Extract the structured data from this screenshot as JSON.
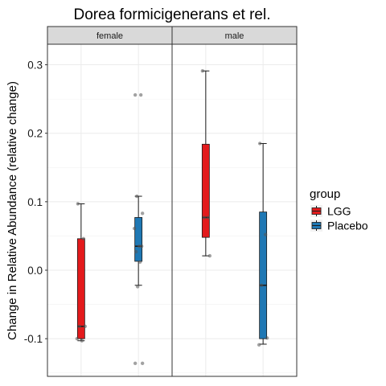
{
  "chart_data": {
    "type": "boxplot",
    "title": "Dorea formicigenerans et rel.",
    "ylabel": "Change in Relative Abundance (relative change)",
    "xlabel": "",
    "ylim": [
      -0.155,
      0.33
    ],
    "yticks": [
      -0.1,
      0.0,
      0.1,
      0.2,
      0.3
    ],
    "ytick_labels": [
      "-0.1",
      "0.0",
      "0.1",
      "0.2",
      "0.3"
    ],
    "grid": true,
    "legend": {
      "title": "group",
      "position": "right",
      "entries": [
        {
          "label": "LGG",
          "color": "#e31a1c"
        },
        {
          "label": "Placebo",
          "color": "#1f78b4"
        }
      ]
    },
    "facets": [
      {
        "label": "female",
        "boxes": [
          {
            "group": "LGG",
            "min": -0.103,
            "q1": -0.1,
            "median": -0.082,
            "q3": 0.046,
            "max": 0.097,
            "points": [
              0.097,
              0.046,
              -0.082,
              -0.082,
              -0.1,
              -0.103
            ]
          },
          {
            "group": "Placebo",
            "min": -0.022,
            "q1": 0.013,
            "median": 0.035,
            "q3": 0.077,
            "max": 0.108,
            "points": [
              0.256,
              0.256,
              0.108,
              0.083,
              0.061,
              0.035,
              0.035,
              0.027,
              0.012,
              -0.024,
              -0.136,
              -0.136
            ]
          }
        ]
      },
      {
        "label": "male",
        "boxes": [
          {
            "group": "LGG",
            "min": 0.021,
            "q1": 0.048,
            "median": 0.077,
            "q3": 0.184,
            "max": 0.291,
            "points": [
              0.291,
              0.077,
              0.077,
              0.021
            ]
          },
          {
            "group": "Placebo",
            "min": -0.108,
            "q1": -0.1,
            "median": -0.022,
            "q3": 0.085,
            "max": 0.185,
            "points": [
              0.185,
              0.052,
              -0.022,
              -0.099,
              -0.109
            ]
          }
        ]
      }
    ]
  }
}
